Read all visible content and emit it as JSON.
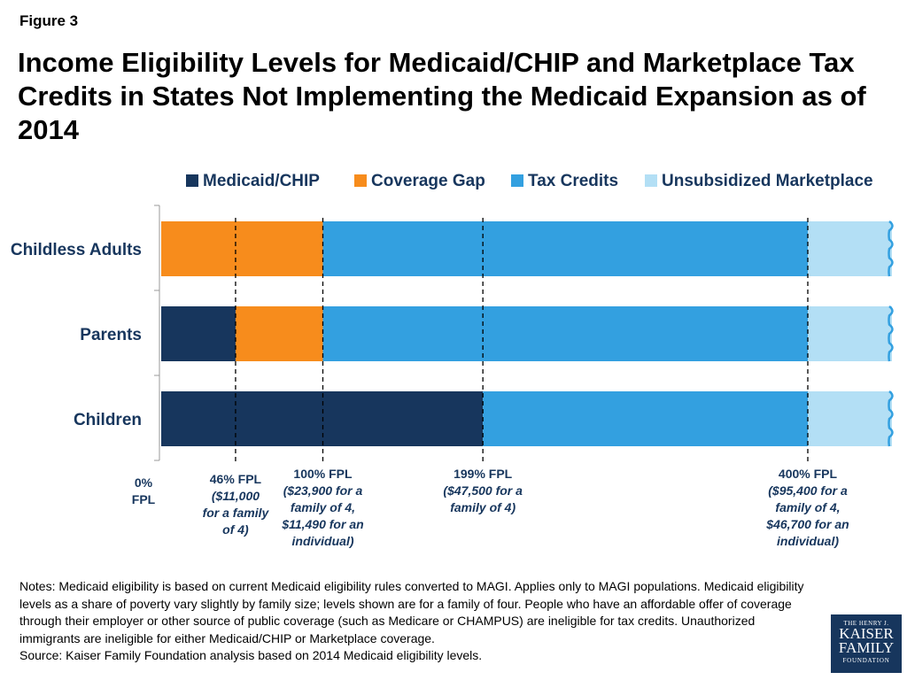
{
  "figure_label": "Figure 3",
  "title": "Income Eligibility Levels for Medicaid/CHIP and Marketplace Tax Credits in States Not Implementing the Medicaid Expansion as of 2014",
  "colors": {
    "medicaid": "#17365d",
    "gap": "#f78c1c",
    "tax_credits": "#33a0e0",
    "unsubsidized": "#b3dff5",
    "text_blue": "#17365d"
  },
  "chart_data": {
    "type": "bar",
    "orientation": "horizontal",
    "stacked": true,
    "title": "Income Eligibility Levels for Medicaid/CHIP and Marketplace Tax Credits in States Not Implementing the Medicaid Expansion as of 2014",
    "categories": [
      "Childless Adults",
      "Parents",
      "Children"
    ],
    "xlabel": "",
    "ylabel": "",
    "x_unit": "% FPL",
    "xlim": [
      0,
      480
    ],
    "series": [
      {
        "name": "Medicaid/CHIP",
        "key": "medicaid",
        "starts": [
          0,
          0,
          0
        ],
        "ends": [
          0,
          46,
          199
        ]
      },
      {
        "name": "Coverage Gap",
        "key": "gap",
        "starts": [
          0,
          46,
          199
        ],
        "ends": [
          100,
          100,
          199
        ]
      },
      {
        "name": "Tax Credits",
        "key": "tax_credits",
        "starts": [
          100,
          100,
          199
        ],
        "ends": [
          400,
          400,
          400
        ]
      },
      {
        "name": "Unsubsidized Marketplace",
        "key": "unsubsidized",
        "starts": [
          400,
          400,
          400
        ],
        "ends": [
          480,
          480,
          480
        ]
      }
    ],
    "reference_lines": [
      46,
      100,
      199,
      400
    ],
    "fpl_labels": [
      {
        "value": 0,
        "lines": [
          "0%",
          "FPL"
        ]
      },
      {
        "value": 46,
        "lines": [
          "46% FPL",
          "($11,000",
          "for a family",
          "of 4)"
        ]
      },
      {
        "value": 100,
        "lines": [
          "100% FPL",
          "($23,900 for a",
          "family of 4,",
          "$11,490 for an",
          "individual)"
        ]
      },
      {
        "value": 199,
        "lines": [
          "199% FPL",
          "($47,500 for a",
          "family of 4)"
        ]
      },
      {
        "value": 400,
        "lines": [
          "400% FPL",
          "($95,400 for a",
          "family of 4,",
          "$46,700 for an",
          "individual)"
        ]
      }
    ],
    "legend_position": "top"
  },
  "notes": [
    "Notes: Medicaid eligibility is based on current Medicaid eligibility rules converted to MAGI. Applies only to MAGI populations. Medicaid eligibility levels as a share of poverty vary slightly by family size; levels shown are for a family of four. People who have an affordable offer of coverage through their employer or other source of public coverage (such as Medicare or CHAMPUS) are ineligible for tax credits. Unauthorized immigrants are ineligible for either Medicaid/CHIP or Marketplace coverage.",
    "Source: Kaiser Family Foundation analysis based on 2014 Medicaid eligibility levels."
  ],
  "logo": {
    "line1": "THE HENRY J.",
    "line2": "KAISER",
    "line3": "FAMILY",
    "line4": "FOUNDATION"
  }
}
